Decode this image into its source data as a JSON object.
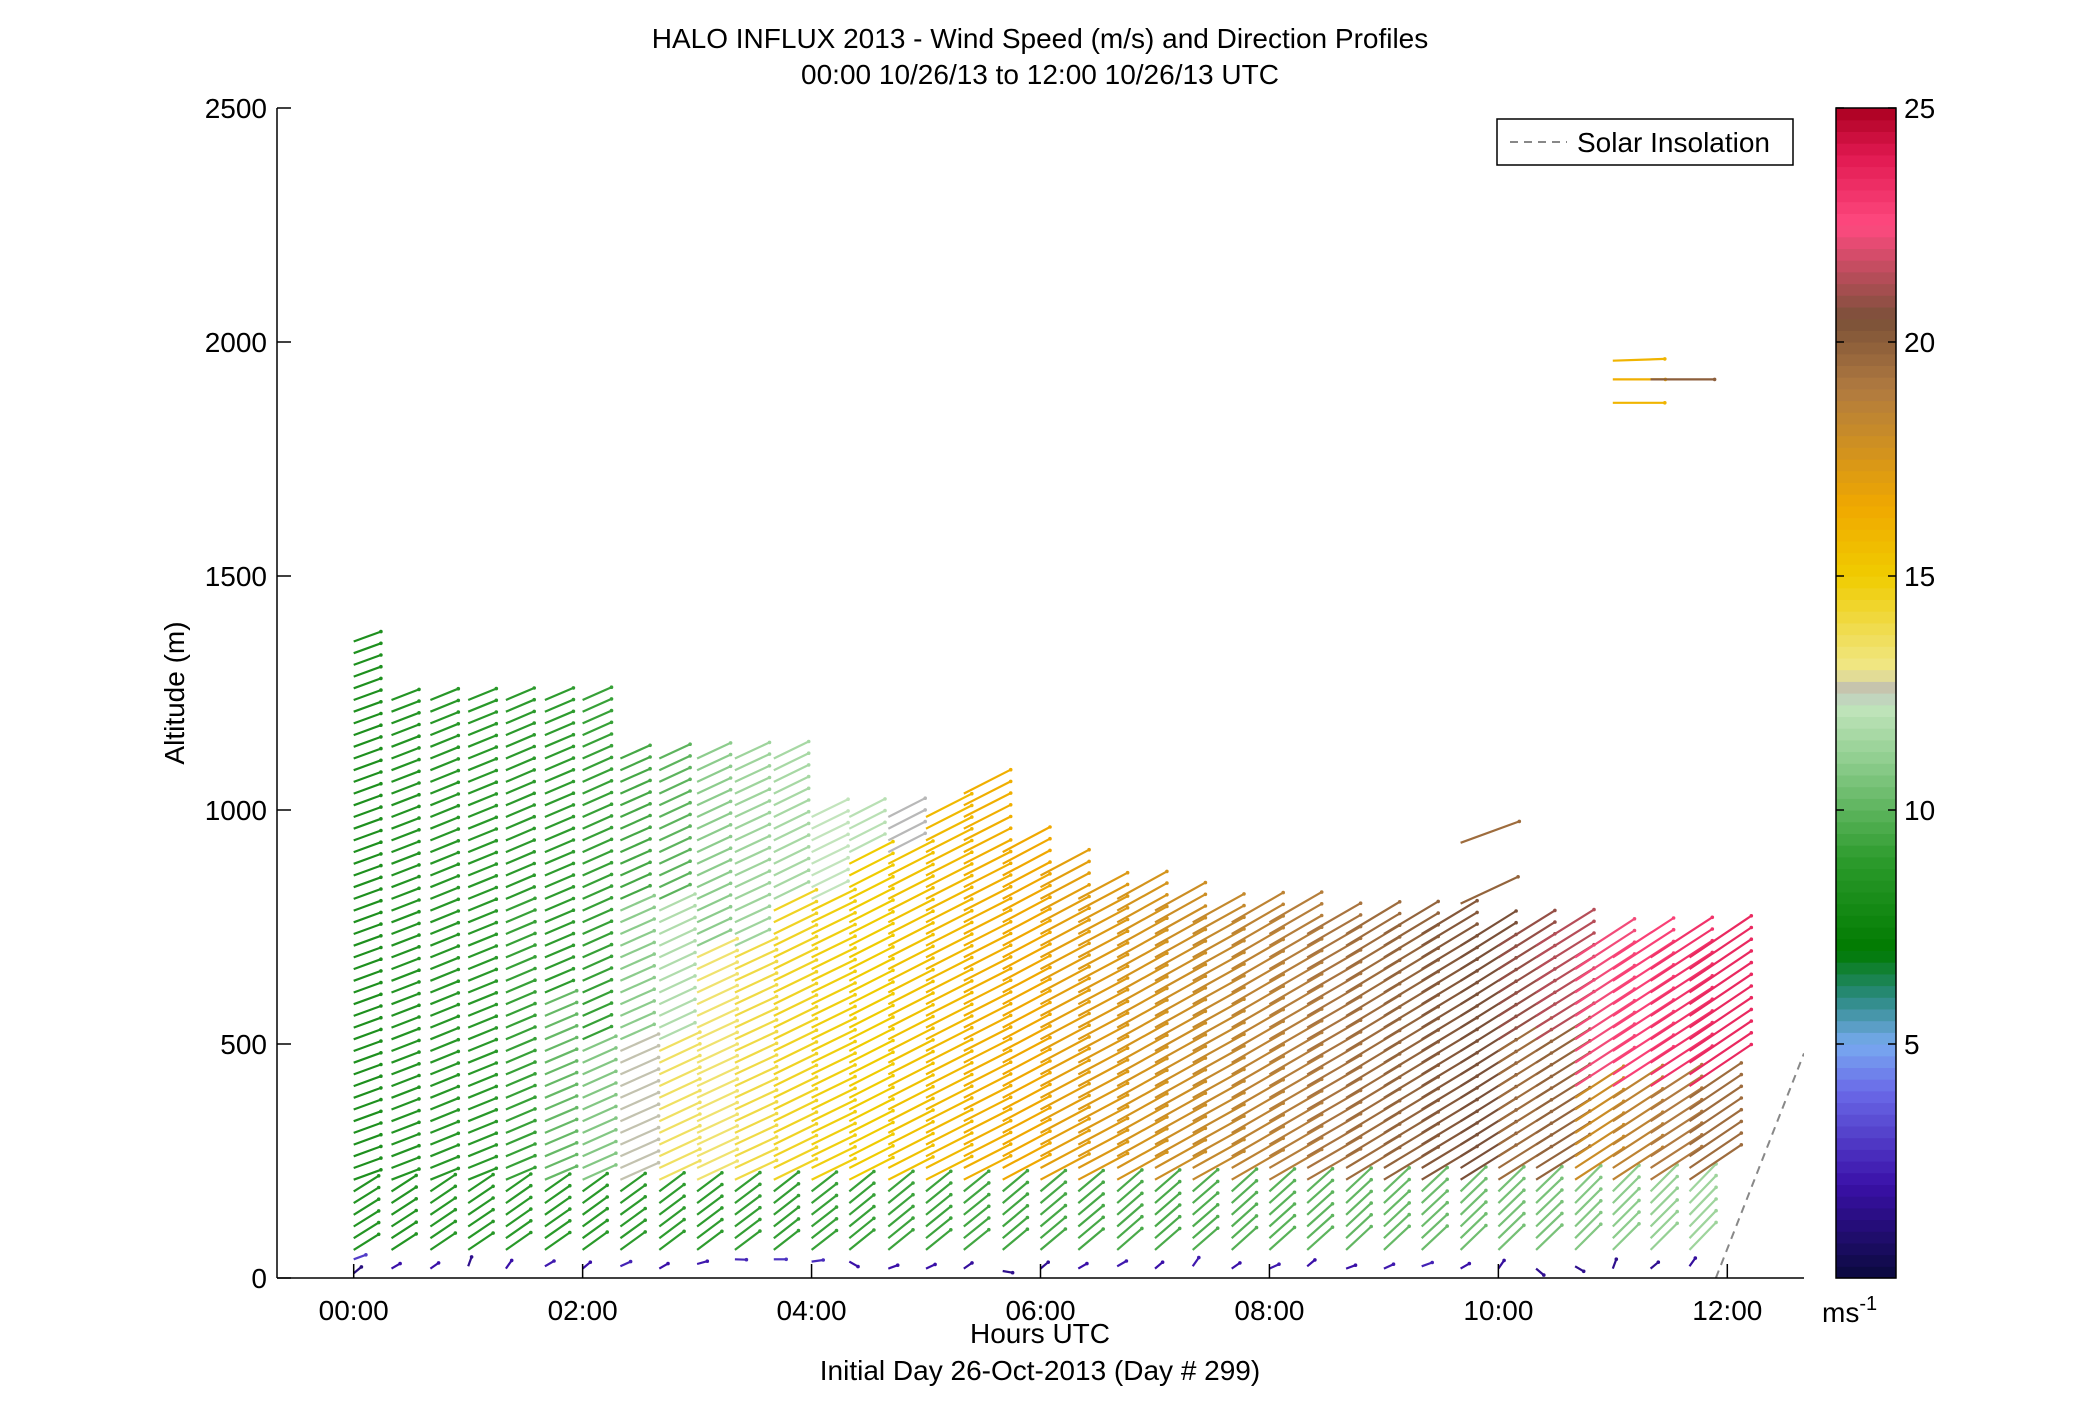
{
  "chart_data": {
    "type": "wind-barb-profile",
    "title": "HALO INFLUX 2013 - Wind Speed (m/s) and Direction Profiles",
    "subtitle": "00:00 10/26/13 to 12:00 10/26/13  UTC",
    "xlabel": "Hours UTC",
    "xlabel2": "Initial Day 26-Oct-2013 (Day # 299)",
    "ylabel": "Altitude (m)",
    "xlim": [
      -0.67,
      12.67
    ],
    "ylim": [
      0,
      2500
    ],
    "xticks": [
      {
        "value": 0,
        "label": "00:00"
      },
      {
        "value": 2,
        "label": "02:00"
      },
      {
        "value": 4,
        "label": "04:00"
      },
      {
        "value": 6,
        "label": "06:00"
      },
      {
        "value": 8,
        "label": "08:00"
      },
      {
        "value": 10,
        "label": "10:00"
      },
      {
        "value": 12,
        "label": "12:00"
      }
    ],
    "yticks": [
      {
        "value": 0,
        "label": "0"
      },
      {
        "value": 500,
        "label": "500"
      },
      {
        "value": 1000,
        "label": "1000"
      },
      {
        "value": 1500,
        "label": "1500"
      },
      {
        "value": 2000,
        "label": "2000"
      },
      {
        "value": 2500,
        "label": "2500"
      }
    ],
    "legend": {
      "label": "Solar Insolation",
      "placement": "top-right",
      "style": "dashed",
      "color": "#888888"
    },
    "colorbar": {
      "label": "ms",
      "label_superscript": "-1",
      "range": [
        0,
        25
      ],
      "ticks": [
        {
          "value": 5,
          "label": "5"
        },
        {
          "value": 10,
          "label": "10"
        },
        {
          "value": 15,
          "label": "15"
        },
        {
          "value": 20,
          "label": "20"
        },
        {
          "value": 25,
          "label": "25"
        }
      ],
      "stops": [
        {
          "v": 0,
          "c": "#0a0a3c"
        },
        {
          "v": 2,
          "c": "#3a10a8"
        },
        {
          "v": 4,
          "c": "#6a6ae8"
        },
        {
          "v": 5,
          "c": "#78aaf0"
        },
        {
          "v": 6,
          "c": "#2a8a80"
        },
        {
          "v": 7,
          "c": "#007a00"
        },
        {
          "v": 9,
          "c": "#2e9c2e"
        },
        {
          "v": 11,
          "c": "#8ccc8c"
        },
        {
          "v": 12.3,
          "c": "#c6e6c0"
        },
        {
          "v": 12.5,
          "c": "#b8b8b8"
        },
        {
          "v": 13,
          "c": "#f0e88a"
        },
        {
          "v": 15,
          "c": "#f0cc00"
        },
        {
          "v": 16.5,
          "c": "#f0a800"
        },
        {
          "v": 19,
          "c": "#b07a40"
        },
        {
          "v": 20.5,
          "c": "#7a5038"
        },
        {
          "v": 22.5,
          "c": "#ff4a80"
        },
        {
          "v": 24,
          "c": "#e01850"
        },
        {
          "v": 25,
          "c": "#aa0020"
        }
      ]
    },
    "solar_insolation": {
      "x": [
        11.9,
        12.67
      ],
      "y": [
        0,
        480
      ]
    },
    "wind_profiles": [
      {
        "t": 0.0,
        "top": 1360,
        "dir": 250,
        "spd": [
          [
            0,
            200,
            8.5
          ],
          [
            200,
            1360,
            8.3
          ]
        ]
      },
      {
        "t": 0.33,
        "top": 1250,
        "dir": 249,
        "spd": [
          [
            0,
            200,
            8.5
          ],
          [
            200,
            1250,
            8.5
          ]
        ]
      },
      {
        "t": 0.67,
        "top": 1250,
        "dir": 248,
        "spd": [
          [
            0,
            200,
            8.7
          ],
          [
            200,
            1250,
            8.7
          ]
        ]
      },
      {
        "t": 1.0,
        "top": 1250,
        "dir": 248,
        "spd": [
          [
            0,
            200,
            8.7
          ],
          [
            200,
            1250,
            8.8
          ]
        ]
      },
      {
        "t": 1.33,
        "top": 1250,
        "dir": 247,
        "spd": [
          [
            0,
            200,
            8.8
          ],
          [
            200,
            800,
            9.2
          ],
          [
            800,
            1250,
            8.9
          ]
        ]
      },
      {
        "t": 1.67,
        "top": 1250,
        "dir": 247,
        "spd": [
          [
            0,
            200,
            8.8
          ],
          [
            200,
            600,
            10.2
          ],
          [
            600,
            1250,
            9.0
          ]
        ]
      },
      {
        "t": 2.0,
        "top": 1250,
        "dir": 246,
        "spd": [
          [
            0,
            200,
            8.8
          ],
          [
            200,
            500,
            10.8
          ],
          [
            500,
            1250,
            9.2
          ]
        ]
      },
      {
        "t": 2.33,
        "top": 1130,
        "dir": 246,
        "spd": [
          [
            0,
            200,
            8.9
          ],
          [
            200,
            500,
            12.6
          ],
          [
            500,
            800,
            11.0
          ],
          [
            800,
            1130,
            9.5
          ]
        ]
      },
      {
        "t": 2.67,
        "top": 1130,
        "dir": 245,
        "spd": [
          [
            0,
            200,
            9.0
          ],
          [
            200,
            500,
            13.6
          ],
          [
            500,
            800,
            11.8
          ],
          [
            800,
            1130,
            10.0
          ]
        ]
      },
      {
        "t": 3.0,
        "top": 1130,
        "dir": 245,
        "spd": [
          [
            0,
            200,
            9.0
          ],
          [
            200,
            700,
            13.4
          ],
          [
            700,
            1130,
            11.0
          ]
        ]
      },
      {
        "t": 3.33,
        "top": 1130,
        "dir": 245,
        "spd": [
          [
            0,
            200,
            9.1
          ],
          [
            200,
            700,
            14.0
          ],
          [
            700,
            1130,
            11.4
          ]
        ]
      },
      {
        "t": 3.67,
        "top": 1130,
        "dir": 244,
        "spd": [
          [
            0,
            200,
            9.1
          ],
          [
            200,
            800,
            14.5
          ],
          [
            800,
            1130,
            11.6
          ]
        ]
      },
      {
        "t": 4.0,
        "top": 1000,
        "dir": 244,
        "spd": [
          [
            0,
            200,
            9.2
          ],
          [
            200,
            800,
            14.8
          ],
          [
            800,
            1000,
            12.2
          ]
        ]
      },
      {
        "t": 4.33,
        "top": 1000,
        "dir": 243,
        "spd": [
          [
            0,
            200,
            9.2
          ],
          [
            200,
            900,
            15.0
          ],
          [
            900,
            1000,
            12.0
          ]
        ]
      },
      {
        "t": 4.67,
        "top": 1000,
        "dir": 243,
        "spd": [
          [
            0,
            200,
            9.3
          ],
          [
            200,
            900,
            15.4
          ],
          [
            900,
            1000,
            12.5
          ]
        ]
      },
      {
        "t": 5.0,
        "top": 1000,
        "dir": 243,
        "spd": [
          [
            0,
            200,
            9.3
          ],
          [
            200,
            1000,
            15.8
          ]
        ]
      },
      {
        "t": 5.33,
        "top": 1050,
        "dir": 243,
        "spd": [
          [
            0,
            200,
            9.4
          ],
          [
            200,
            1050,
            16.2
          ]
        ]
      },
      {
        "t": 5.67,
        "top": 930,
        "dir": 242,
        "spd": [
          [
            0,
            200,
            9.4
          ],
          [
            200,
            930,
            16.5
          ]
        ]
      },
      {
        "t": 6.0,
        "top": 860,
        "dir": 242,
        "spd": [
          [
            0,
            200,
            9.5
          ],
          [
            200,
            860,
            17.0
          ]
        ]
      },
      {
        "t": 6.33,
        "top": 820,
        "dir": 242,
        "spd": [
          [
            0,
            200,
            9.5
          ],
          [
            200,
            820,
            17.3
          ]
        ]
      },
      {
        "t": 6.67,
        "top": 820,
        "dir": 241,
        "spd": [
          [
            0,
            200,
            9.6
          ],
          [
            200,
            820,
            17.6
          ]
        ]
      },
      {
        "t": 7.0,
        "top": 800,
        "dir": 241,
        "spd": [
          [
            0,
            200,
            9.6
          ],
          [
            200,
            800,
            17.9
          ]
        ]
      },
      {
        "t": 7.33,
        "top": 770,
        "dir": 241,
        "spd": [
          [
            0,
            200,
            9.7
          ],
          [
            200,
            770,
            18.2
          ]
        ]
      },
      {
        "t": 7.67,
        "top": 770,
        "dir": 240,
        "spd": [
          [
            0,
            200,
            9.8
          ],
          [
            200,
            770,
            18.5
          ]
        ]
      },
      {
        "t": 8.0,
        "top": 770,
        "dir": 240,
        "spd": [
          [
            0,
            200,
            9.9
          ],
          [
            200,
            770,
            18.8
          ]
        ]
      },
      {
        "t": 8.33,
        "top": 740,
        "dir": 240,
        "spd": [
          [
            0,
            200,
            10.0
          ],
          [
            200,
            740,
            19.2
          ]
        ]
      },
      {
        "t": 8.67,
        "top": 740,
        "dir": 239,
        "spd": [
          [
            0,
            200,
            10.1
          ],
          [
            200,
            740,
            19.5
          ]
        ]
      },
      {
        "t": 9.0,
        "top": 740,
        "dir": 239,
        "spd": [
          [
            0,
            200,
            10.2
          ],
          [
            200,
            740,
            19.8
          ]
        ]
      },
      {
        "t": 9.33,
        "top": 740,
        "dir": 239,
        "spd": [
          [
            0,
            200,
            10.3
          ],
          [
            200,
            740,
            20.2
          ]
        ]
      },
      {
        "t": 9.67,
        "top": 720,
        "dir": 238,
        "spd": [
          [
            0,
            200,
            10.4
          ],
          [
            200,
            720,
            20.5
          ]
        ]
      },
      {
        "t": 10.0,
        "top": 720,
        "dir": 238,
        "spd": [
          [
            0,
            200,
            10.5
          ],
          [
            200,
            500,
            19.5
          ],
          [
            500,
            720,
            20.9
          ]
        ]
      },
      {
        "t": 10.33,
        "top": 720,
        "dir": 238,
        "spd": [
          [
            0,
            200,
            10.6
          ],
          [
            200,
            500,
            19.8
          ],
          [
            500,
            720,
            21.4
          ]
        ]
      },
      {
        "t": 10.67,
        "top": 700,
        "dir": 237,
        "spd": [
          [
            0,
            200,
            10.8
          ],
          [
            200,
            400,
            18.0
          ],
          [
            400,
            700,
            22.3
          ]
        ]
      },
      {
        "t": 11.0,
        "top": 700,
        "dir": 237,
        "spd": [
          [
            0,
            200,
            11.0
          ],
          [
            200,
            400,
            18.5
          ],
          [
            400,
            700,
            22.8
          ]
        ]
      },
      {
        "t": 11.33,
        "top": 700,
        "dir": 237,
        "spd": [
          [
            0,
            200,
            11.2
          ],
          [
            200,
            400,
            19.0
          ],
          [
            400,
            700,
            23.2
          ]
        ]
      },
      {
        "t": 11.67,
        "top": 700,
        "dir": 236,
        "spd": [
          [
            0,
            200,
            11.4
          ],
          [
            200,
            400,
            19.5
          ],
          [
            400,
            700,
            23.5
          ]
        ]
      }
    ],
    "isolated_barbs": [
      {
        "t": 9.67,
        "alt": 930,
        "dir": 250,
        "spd": 19.5
      },
      {
        "t": 9.67,
        "alt": 800,
        "dir": 245,
        "spd": 19.8
      },
      {
        "t": 11.0,
        "alt": 1960,
        "dir": 268,
        "spd": 16.0
      },
      {
        "t": 11.0,
        "alt": 1920,
        "dir": 270,
        "spd": 16.2
      },
      {
        "t": 11.0,
        "alt": 1870,
        "dir": 270,
        "spd": 16.0
      },
      {
        "t": 11.33,
        "alt": 1920,
        "dir": 270,
        "spd": 20.0
      }
    ],
    "surface_barbs": [
      {
        "t": 0.0,
        "alt": 10,
        "dir": 230,
        "spd": 1.2
      },
      {
        "t": 0.0,
        "alt": 40,
        "dir": 250,
        "spd": 3.0
      },
      {
        "t": 0.33,
        "alt": 20,
        "dir": 240,
        "spd": 2.0
      },
      {
        "t": 0.67,
        "alt": 20,
        "dir": 235,
        "spd": 2.0
      },
      {
        "t": 1.0,
        "alt": 25,
        "dir": 200,
        "spd": 1.5
      },
      {
        "t": 1.33,
        "alt": 20,
        "dir": 215,
        "spd": 2.0
      },
      {
        "t": 1.67,
        "alt": 25,
        "dir": 240,
        "spd": 2.2
      },
      {
        "t": 2.0,
        "alt": 20,
        "dir": 230,
        "spd": 2.0
      },
      {
        "t": 2.33,
        "alt": 25,
        "dir": 245,
        "spd": 2.4
      },
      {
        "t": 2.67,
        "alt": 20,
        "dir": 240,
        "spd": 2.0
      },
      {
        "t": 3.0,
        "alt": 30,
        "dir": 255,
        "spd": 2.2
      },
      {
        "t": 3.33,
        "alt": 40,
        "dir": 272,
        "spd": 2.5
      },
      {
        "t": 3.67,
        "alt": 40,
        "dir": 270,
        "spd": 2.8
      },
      {
        "t": 4.0,
        "alt": 35,
        "dir": 262,
        "spd": 2.6
      },
      {
        "t": 4.33,
        "alt": 35,
        "dir": 300,
        "spd": 2.0
      },
      {
        "t": 4.67,
        "alt": 20,
        "dir": 250,
        "spd": 2.0
      },
      {
        "t": 5.0,
        "alt": 20,
        "dir": 245,
        "spd": 2.0
      },
      {
        "t": 5.33,
        "alt": 20,
        "dir": 235,
        "spd": 1.8
      },
      {
        "t": 5.67,
        "alt": 15,
        "dir": 280,
        "spd": 1.5
      },
      {
        "t": 6.0,
        "alt": 20,
        "dir": 230,
        "spd": 1.6
      },
      {
        "t": 6.33,
        "alt": 20,
        "dir": 240,
        "spd": 2.0
      },
      {
        "t": 6.67,
        "alt": 25,
        "dir": 240,
        "spd": 2.2
      },
      {
        "t": 7.0,
        "alt": 20,
        "dir": 230,
        "spd": 2.0
      },
      {
        "t": 7.33,
        "alt": 25,
        "dir": 215,
        "spd": 2.2
      },
      {
        "t": 7.67,
        "alt": 20,
        "dir": 235,
        "spd": 2.0
      },
      {
        "t": 8.0,
        "alt": 20,
        "dir": 245,
        "spd": 2.2
      },
      {
        "t": 8.33,
        "alt": 25,
        "dir": 230,
        "spd": 2.0
      },
      {
        "t": 8.67,
        "alt": 20,
        "dir": 250,
        "spd": 2.0
      },
      {
        "t": 9.0,
        "alt": 20,
        "dir": 245,
        "spd": 2.2
      },
      {
        "t": 9.33,
        "alt": 25,
        "dir": 250,
        "spd": 2.4
      },
      {
        "t": 9.67,
        "alt": 20,
        "dir": 240,
        "spd": 2.0
      },
      {
        "t": 10.0,
        "alt": 20,
        "dir": 215,
        "spd": 1.8
      },
      {
        "t": 10.33,
        "alt": 20,
        "dir": 310,
        "spd": 1.6
      },
      {
        "t": 10.67,
        "alt": 25,
        "dir": 300,
        "spd": 1.5
      },
      {
        "t": 11.0,
        "alt": 20,
        "dir": 200,
        "spd": 1.5
      },
      {
        "t": 11.33,
        "alt": 20,
        "dir": 230,
        "spd": 1.6
      },
      {
        "t": 11.67,
        "alt": 25,
        "dir": 215,
        "spd": 1.8
      }
    ]
  }
}
